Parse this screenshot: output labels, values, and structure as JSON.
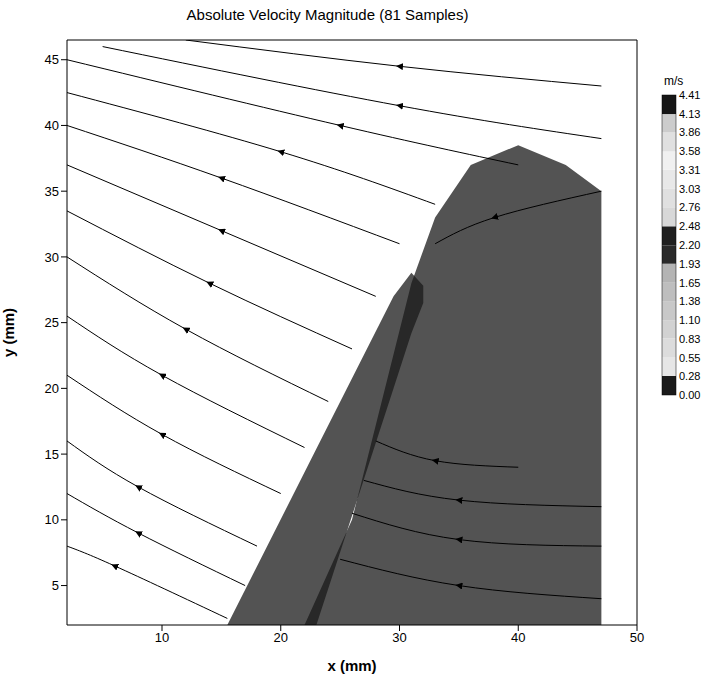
{
  "chart_data": {
    "type": "contour_streamline",
    "title": "Absolute Velocity Magnitude (81 Samples)",
    "x_label": "x (mm)",
    "y_label": "y (mm)",
    "xlim": [
      2,
      50
    ],
    "ylim": [
      2,
      46.5
    ],
    "xticks": [
      10,
      20,
      30,
      40,
      50
    ],
    "yticks": [
      5,
      10,
      15,
      20,
      25,
      30,
      35,
      40,
      45
    ],
    "grid": false,
    "colorbar": {
      "unit": "m/s",
      "range": [
        0,
        4.41
      ],
      "ticks": [
        {
          "value": 0,
          "label": "0.00"
        },
        {
          "value": 0.28,
          "label": "0.28"
        },
        {
          "value": 0.55,
          "label": "0.55"
        },
        {
          "value": 0.83,
          "label": "0.83"
        },
        {
          "value": 1.1,
          "label": "1.10"
        },
        {
          "value": 1.38,
          "label": "1.38"
        },
        {
          "value": 1.65,
          "label": "1.65"
        },
        {
          "value": 1.93,
          "label": "1.93"
        },
        {
          "value": 2.2,
          "label": "2.20"
        },
        {
          "value": 2.48,
          "label": "2.48"
        },
        {
          "value": 2.76,
          "label": "2.76"
        },
        {
          "value": 3.03,
          "label": "3.03"
        },
        {
          "value": 3.31,
          "label": "3.31"
        },
        {
          "value": 3.58,
          "label": "3.58"
        },
        {
          "value": 3.86,
          "label": "3.86"
        },
        {
          "value": 4.13,
          "label": "4.13"
        },
        {
          "value": 4.41,
          "label": "4.41"
        }
      ],
      "colors": [
        "#1a1a1a",
        "#e6e6e6",
        "#dcdcdc",
        "#d2d2d2",
        "#c8c8c8",
        "#bebebe",
        "#b4b4b4",
        "#2a2a2a",
        "#202020",
        "#d8d8d8",
        "#e0e0e0",
        "#e8e8e8",
        "#f0f0f0",
        "#e0e0e0",
        "#cccccc",
        "#161616"
      ]
    },
    "regions": [
      {
        "level": 0.15,
        "x": [
          22,
          26,
          31,
          33,
          36,
          40,
          44,
          47
        ],
        "low": [
          2,
          2,
          2,
          2,
          2,
          2,
          2,
          2
        ],
        "high": [
          2,
          10,
          28,
          33,
          37,
          38.5,
          37,
          35
        ]
      },
      {
        "level": 0,
        "x": [
          15.5,
          23,
          29.5,
          31,
          32
        ],
        "low": [
          2,
          2,
          20,
          24.2,
          26.5
        ],
        "high": [
          2,
          15.4,
          27,
          28.8,
          27.8
        ]
      }
    ],
    "streamlines": {
      "marker": "arrow",
      "color": "#000000",
      "lines": [
        {
          "x": [
            47,
            30,
            12
          ],
          "y": [
            43,
            44.5,
            46.5
          ]
        },
        {
          "x": [
            47,
            30,
            5
          ],
          "y": [
            39,
            41.5,
            46
          ]
        },
        {
          "x": [
            40,
            25,
            2
          ],
          "y": [
            37,
            40,
            45
          ]
        },
        {
          "x": [
            33,
            20,
            2
          ],
          "y": [
            34,
            38,
            42.5
          ]
        },
        {
          "x": [
            30,
            15,
            2
          ],
          "y": [
            31,
            36,
            40
          ]
        },
        {
          "x": [
            28,
            15,
            2
          ],
          "y": [
            27,
            32,
            37
          ]
        },
        {
          "x": [
            26,
            14,
            2
          ],
          "y": [
            23,
            28,
            33.5
          ]
        },
        {
          "x": [
            24,
            12,
            2
          ],
          "y": [
            19,
            24.5,
            30
          ]
        },
        {
          "x": [
            22,
            10,
            2
          ],
          "y": [
            15.5,
            21,
            25.5
          ]
        },
        {
          "x": [
            20,
            10,
            2
          ],
          "y": [
            12,
            16.5,
            21
          ]
        },
        {
          "x": [
            18,
            8,
            2
          ],
          "y": [
            8,
            12.5,
            16
          ]
        },
        {
          "x": [
            17,
            8,
            2
          ],
          "y": [
            5,
            9,
            12
          ]
        },
        {
          "x": [
            15.5,
            6,
            2
          ],
          "y": [
            2.5,
            6.5,
            8
          ]
        },
        {
          "x": [
            47,
            38,
            33
          ],
          "y": [
            35,
            33,
            31
          ]
        },
        {
          "x": [
            47,
            35,
            25
          ],
          "y": [
            4,
            5,
            7
          ]
        },
        {
          "x": [
            47,
            35,
            26
          ],
          "y": [
            8,
            8.5,
            10.5
          ]
        },
        {
          "x": [
            47,
            35,
            27
          ],
          "y": [
            11,
            11.5,
            13
          ]
        },
        {
          "x": [
            40,
            33,
            28
          ],
          "y": [
            14,
            14.5,
            16
          ]
        }
      ]
    }
  }
}
